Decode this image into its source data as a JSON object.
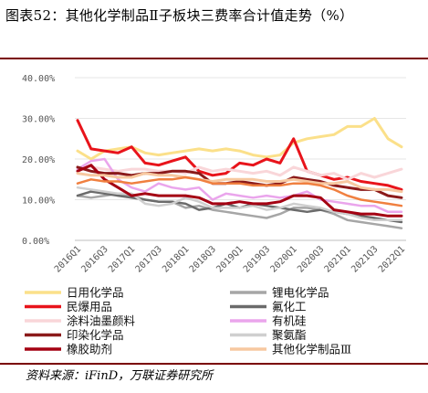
{
  "title": "图表52：其他化学制品Ⅱ子板块三费率合计值走势（%）",
  "source": "资料来源：iFinD，万联证券研究所",
  "chart_data": {
    "type": "line",
    "ylim": [
      0,
      40
    ],
    "yticks": [
      "0.00%",
      "10.00%",
      "20.00%",
      "30.00%",
      "40.00%"
    ],
    "ytick_values": [
      0,
      10,
      20,
      30,
      40
    ],
    "x": [
      "2016Q1",
      "2016Q2",
      "2016Q3",
      "2016Q4",
      "2017Q1",
      "2017Q2",
      "2017Q3",
      "2017Q4",
      "2018Q1",
      "2018Q2",
      "2018Q3",
      "2018Q4",
      "2019Q1",
      "2019Q2",
      "2019Q3",
      "2019Q4",
      "2020Q1",
      "2020Q2",
      "2020Q3",
      "2020Q4",
      "2021Q1",
      "2021Q2",
      "2021Q3",
      "2021Q4",
      "2022Q1"
    ],
    "xtick_labels": [
      "2016Q1",
      "2016Q3",
      "2017Q1",
      "2017Q3",
      "2018Q1",
      "2018Q3",
      "2019Q1",
      "2019Q3",
      "2020Q1",
      "2020Q3",
      "2021Q1",
      "2021Q3",
      "2022Q1"
    ],
    "grid": true,
    "legend_position": "bottom",
    "series": [
      {
        "name": "日用化学品",
        "color": "#fbe08a",
        "values": [
          22,
          20,
          22,
          22.5,
          23,
          21.5,
          21,
          21.5,
          22,
          22.5,
          22,
          22.5,
          22,
          21,
          20.5,
          21,
          24,
          25,
          25.5,
          26,
          28,
          28,
          30,
          25,
          23
        ]
      },
      {
        "name": "锂电化学品",
        "color": "#a6a6a6",
        "values": [
          11,
          10.5,
          11,
          11.5,
          11,
          10,
          9.5,
          9.5,
          8,
          8.5,
          7.5,
          7,
          6.5,
          6,
          5.5,
          6.5,
          8,
          8,
          7.5,
          6.5,
          5,
          4.5,
          4,
          3.5,
          3
        ]
      },
      {
        "name": "民爆用品",
        "color": "#e8141b",
        "values": [
          29.5,
          22.5,
          22,
          21.5,
          23,
          19,
          18.5,
          19.5,
          20.5,
          17,
          16,
          16.5,
          19,
          18.5,
          20,
          19,
          25,
          17,
          16,
          15,
          15.5,
          14.5,
          14,
          13.5,
          12.5
        ]
      },
      {
        "name": "氟化工",
        "color": "#6b6b6b",
        "values": [
          11,
          12,
          11.5,
          11,
          10.5,
          10,
          9.5,
          9.5,
          9,
          7.5,
          8,
          9,
          8,
          9,
          8.5,
          8,
          7.5,
          7,
          7.5,
          7,
          6.5,
          6,
          5.5,
          5,
          4.5
        ]
      },
      {
        "name": "涂料油墨颜料",
        "color": "#f9d6d9",
        "values": [
          17.5,
          18,
          17.5,
          17,
          17.5,
          17.5,
          17,
          17,
          16.5,
          18,
          17,
          17.5,
          17,
          16.5,
          17,
          16,
          18,
          17,
          16,
          16.5,
          15,
          16.5,
          15.5,
          16.5,
          17.5
        ]
      },
      {
        "name": "有机硅",
        "color": "#eaa5ec",
        "values": [
          17.5,
          19.5,
          20,
          15,
          13,
          12,
          14,
          13,
          12.5,
          13,
          10,
          11.5,
          11,
          10.5,
          11,
          10.5,
          11,
          12,
          10,
          9.5,
          9,
          8.5,
          8.5,
          7,
          7
        ]
      },
      {
        "name": "印染化学品",
        "color": "#8b1a1a",
        "values": [
          18,
          17,
          16.5,
          16.5,
          16,
          16.5,
          16.5,
          17,
          17,
          16.5,
          14,
          14,
          14.5,
          14,
          13.5,
          14,
          15.5,
          15,
          14.5,
          13.5,
          13,
          12.5,
          12.5,
          11,
          10.5
        ]
      },
      {
        "name": "聚氨酯",
        "color": "#cfcfcf",
        "values": [
          13,
          12.5,
          12,
          11.5,
          11.5,
          9,
          8.5,
          9,
          10.5,
          9.5,
          8,
          8,
          8,
          8.5,
          7.5,
          8,
          9,
          8.5,
          8,
          7,
          6.5,
          5.5,
          5,
          5,
          5
        ]
      },
      {
        "name": "橡胶助剂",
        "color": "#a40012",
        "values": [
          17,
          18.5,
          15,
          13,
          11,
          11.5,
          11,
          11,
          11,
          10.5,
          9,
          9,
          9.5,
          9,
          9,
          9.5,
          11,
          11,
          10.5,
          7.5,
          7,
          6.5,
          6.5,
          6,
          6
        ]
      },
      {
        "name": "其他化学制品Ⅲ",
        "color": "#f7c8a0",
        "values": [
          16.5,
          16,
          16,
          15.5,
          15.5,
          16.5,
          16,
          16,
          15.5,
          15,
          14.5,
          15,
          15,
          15,
          14.5,
          14.5,
          15,
          14.5,
          14,
          14,
          14.5,
          13,
          12.5,
          12.5,
          12
        ]
      },
      {
        "name": "",
        "color": "#f08040",
        "values": [
          14,
          15,
          14.5,
          14.5,
          14,
          14.5,
          15,
          15,
          15.5,
          15,
          14,
          14,
          14,
          13.5,
          13.5,
          13.5,
          14,
          14,
          13.5,
          12.5,
          11,
          10,
          9.5,
          9,
          8.5
        ]
      }
    ],
    "legend": [
      "日用化学品",
      "锂电化学品",
      "民爆用品",
      "氟化工",
      "涂料油墨颜料",
      "有机硅",
      "印染化学品",
      "聚氨酯",
      "橡胶助剂",
      "其他化学制品Ⅲ"
    ]
  }
}
